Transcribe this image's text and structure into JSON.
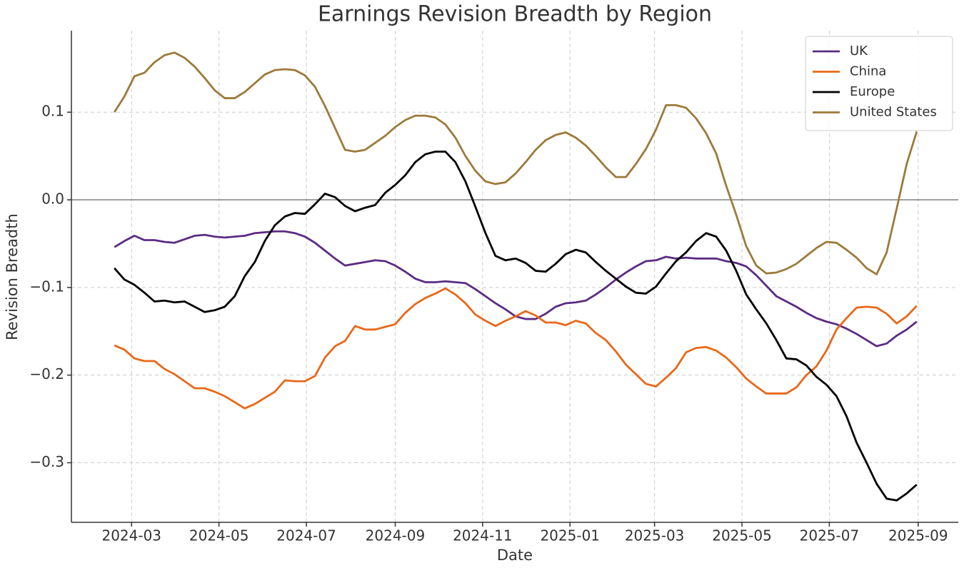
{
  "chart_data": {
    "type": "line",
    "title": "Earnings Revision Breadth by Region",
    "xlabel": "Date",
    "ylabel": "Revision Breadth",
    "x": [
      "2024-02-18",
      "2024-02-25",
      "2024-03-03",
      "2024-03-10",
      "2024-03-17",
      "2024-03-24",
      "2024-03-31",
      "2024-04-07",
      "2024-04-14",
      "2024-04-21",
      "2024-04-28",
      "2024-05-05",
      "2024-05-12",
      "2024-05-19",
      "2024-05-26",
      "2024-06-02",
      "2024-06-09",
      "2024-06-16",
      "2024-06-23",
      "2024-06-30",
      "2024-07-07",
      "2024-07-14",
      "2024-07-21",
      "2024-07-28",
      "2024-08-04",
      "2024-08-11",
      "2024-08-18",
      "2024-08-25",
      "2024-09-01",
      "2024-09-08",
      "2024-09-15",
      "2024-09-22",
      "2024-09-29",
      "2024-10-06",
      "2024-10-13",
      "2024-10-20",
      "2024-10-27",
      "2024-11-03",
      "2024-11-10",
      "2024-11-17",
      "2024-11-24",
      "2024-12-01",
      "2024-12-08",
      "2024-12-15",
      "2024-12-22",
      "2024-12-29",
      "2025-01-05",
      "2025-01-12",
      "2025-01-19",
      "2025-01-26",
      "2025-02-02",
      "2025-02-09",
      "2025-02-16",
      "2025-02-23",
      "2025-03-02",
      "2025-03-09",
      "2025-03-16",
      "2025-03-23",
      "2025-03-30",
      "2025-04-06",
      "2025-04-13",
      "2025-04-20",
      "2025-04-27",
      "2025-05-04",
      "2025-05-11",
      "2025-05-18",
      "2025-05-25",
      "2025-06-01",
      "2025-06-08",
      "2025-06-15",
      "2025-06-22",
      "2025-06-29",
      "2025-07-06",
      "2025-07-13",
      "2025-07-20",
      "2025-07-27",
      "2025-08-03",
      "2025-08-10",
      "2025-08-17",
      "2025-08-24",
      "2025-08-31"
    ],
    "series": [
      {
        "name": "UK",
        "color": "#5b2c83",
        "values": [
          -0.054,
          -0.047,
          -0.041,
          -0.046,
          -0.046,
          -0.048,
          -0.049,
          -0.045,
          -0.041,
          -0.04,
          -0.042,
          -0.043,
          -0.042,
          -0.041,
          -0.038,
          -0.037,
          -0.036,
          -0.036,
          -0.038,
          -0.042,
          -0.049,
          -0.058,
          -0.067,
          -0.075,
          -0.073,
          -0.071,
          -0.069,
          -0.07,
          -0.075,
          -0.082,
          -0.09,
          -0.094,
          -0.094,
          -0.093,
          -0.094,
          -0.095,
          -0.102,
          -0.11,
          -0.118,
          -0.125,
          -0.133,
          -0.136,
          -0.136,
          -0.13,
          -0.122,
          -0.118,
          -0.117,
          -0.115,
          -0.108,
          -0.1,
          -0.091,
          -0.083,
          -0.076,
          -0.07,
          -0.069,
          -0.065,
          -0.067,
          -0.066,
          -0.067,
          -0.067,
          -0.067,
          -0.07,
          -0.072,
          -0.076,
          -0.086,
          -0.098,
          -0.11,
          -0.116,
          -0.122,
          -0.129,
          -0.135,
          -0.139,
          -0.142,
          -0.147,
          -0.153,
          -0.16,
          -0.167,
          -0.164,
          -0.155,
          -0.148,
          -0.139
        ]
      },
      {
        "name": "China",
        "color": "#e8681a",
        "values": [
          -0.166,
          -0.171,
          -0.181,
          -0.184,
          -0.184,
          -0.193,
          -0.199,
          -0.207,
          -0.215,
          -0.215,
          -0.219,
          -0.224,
          -0.231,
          -0.238,
          -0.233,
          -0.226,
          -0.219,
          -0.206,
          -0.207,
          -0.207,
          -0.201,
          -0.18,
          -0.167,
          -0.161,
          -0.144,
          -0.148,
          -0.148,
          -0.145,
          -0.142,
          -0.129,
          -0.119,
          -0.112,
          -0.107,
          -0.101,
          -0.108,
          -0.118,
          -0.131,
          -0.138,
          -0.144,
          -0.138,
          -0.133,
          -0.127,
          -0.132,
          -0.14,
          -0.14,
          -0.143,
          -0.138,
          -0.141,
          -0.152,
          -0.16,
          -0.173,
          -0.188,
          -0.199,
          -0.21,
          -0.213,
          -0.203,
          -0.192,
          -0.174,
          -0.169,
          -0.168,
          -0.172,
          -0.18,
          -0.191,
          -0.204,
          -0.213,
          -0.221,
          -0.221,
          -0.221,
          -0.214,
          -0.2,
          -0.19,
          -0.172,
          -0.148,
          -0.135,
          -0.123,
          -0.122,
          -0.123,
          -0.13,
          -0.141,
          -0.133,
          -0.121
        ]
      },
      {
        "name": "Europe",
        "color": "#000000",
        "values": [
          -0.078,
          -0.091,
          -0.097,
          -0.106,
          -0.116,
          -0.115,
          -0.117,
          -0.116,
          -0.122,
          -0.128,
          -0.126,
          -0.122,
          -0.11,
          -0.087,
          -0.071,
          -0.047,
          -0.029,
          -0.019,
          -0.015,
          -0.016,
          -0.005,
          0.007,
          0.003,
          -0.007,
          -0.013,
          -0.009,
          -0.006,
          0.008,
          0.017,
          0.028,
          0.043,
          0.052,
          0.055,
          0.055,
          0.043,
          0.021,
          -0.008,
          -0.038,
          -0.064,
          -0.069,
          -0.067,
          -0.072,
          -0.081,
          -0.082,
          -0.073,
          -0.062,
          -0.057,
          -0.06,
          -0.071,
          -0.081,
          -0.09,
          -0.099,
          -0.106,
          -0.107,
          -0.099,
          -0.084,
          -0.07,
          -0.06,
          -0.047,
          -0.038,
          -0.042,
          -0.058,
          -0.081,
          -0.108,
          -0.125,
          -0.141,
          -0.16,
          -0.181,
          -0.182,
          -0.189,
          -0.202,
          -0.211,
          -0.224,
          -0.247,
          -0.277,
          -0.3,
          -0.324,
          -0.341,
          -0.343,
          -0.335,
          -0.325
        ]
      },
      {
        "name": "United States",
        "color": "#9c7a3a",
        "values": [
          0.1,
          0.118,
          0.141,
          0.145,
          0.157,
          0.165,
          0.168,
          0.162,
          0.152,
          0.139,
          0.125,
          0.116,
          0.116,
          0.123,
          0.133,
          0.143,
          0.148,
          0.149,
          0.148,
          0.142,
          0.129,
          0.107,
          0.082,
          0.057,
          0.055,
          0.057,
          0.065,
          0.073,
          0.083,
          0.091,
          0.096,
          0.096,
          0.094,
          0.086,
          0.071,
          0.05,
          0.033,
          0.021,
          0.018,
          0.02,
          0.03,
          0.043,
          0.057,
          0.068,
          0.074,
          0.077,
          0.071,
          0.062,
          0.05,
          0.037,
          0.026,
          0.026,
          0.041,
          0.058,
          0.08,
          0.108,
          0.108,
          0.105,
          0.093,
          0.076,
          0.053,
          0.016,
          -0.017,
          -0.053,
          -0.075,
          -0.084,
          -0.083,
          -0.079,
          -0.073,
          -0.064,
          -0.055,
          -0.048,
          -0.049,
          -0.057,
          -0.066,
          -0.078,
          -0.085,
          -0.06,
          -0.01,
          0.041,
          0.078
        ]
      }
    ],
    "xlim": [
      "2024-01-19",
      "2025-09-29"
    ],
    "xticks": [
      {
        "value": "2024-03-01",
        "label": "2024-03"
      },
      {
        "value": "2024-05-01",
        "label": "2024-05"
      },
      {
        "value": "2024-07-01",
        "label": "2024-07"
      },
      {
        "value": "2024-09-01",
        "label": "2024-09"
      },
      {
        "value": "2024-11-01",
        "label": "2024-11"
      },
      {
        "value": "2025-01-01",
        "label": "2025-01"
      },
      {
        "value": "2025-03-01",
        "label": "2025-03"
      },
      {
        "value": "2025-05-01",
        "label": "2025-05"
      },
      {
        "value": "2025-07-01",
        "label": "2025-07"
      },
      {
        "value": "2025-09-01",
        "label": "2025-09"
      }
    ],
    "ylim": [
      -0.368,
      0.193
    ],
    "yticks": [
      {
        "value": -0.3,
        "label": "−0.3"
      },
      {
        "value": -0.2,
        "label": "−0.2"
      },
      {
        "value": -0.1,
        "label": "−0.1"
      },
      {
        "value": 0,
        "label": "0.0"
      },
      0.1
    ],
    "hline": 0,
    "grid": true,
    "legend": "upper right"
  }
}
